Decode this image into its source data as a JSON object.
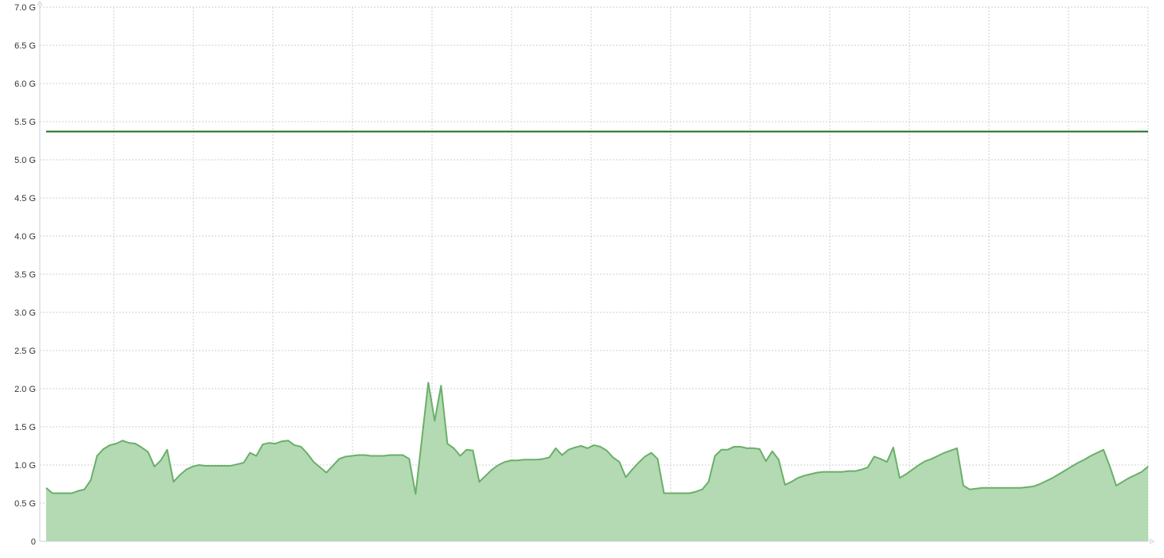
{
  "chart_data": {
    "type": "area",
    "title": "",
    "xlabel": "",
    "ylabel": "",
    "ylim": [
      0,
      7.0
    ],
    "y_ticks": [
      {
        "value": 0,
        "label": "0"
      },
      {
        "value": 0.5,
        "label": "0.5 G"
      },
      {
        "value": 1.0,
        "label": "1.0 G"
      },
      {
        "value": 1.5,
        "label": "1.5 G"
      },
      {
        "value": 2.0,
        "label": "2.0 G"
      },
      {
        "value": 2.5,
        "label": "2.5 G"
      },
      {
        "value": 3.0,
        "label": "3.0 G"
      },
      {
        "value": 3.5,
        "label": "3.5 G"
      },
      {
        "value": 4.0,
        "label": "4.0 G"
      },
      {
        "value": 4.5,
        "label": "4.5 G"
      },
      {
        "value": 5.0,
        "label": "5.0 G"
      },
      {
        "value": 5.5,
        "label": "5.5 G"
      },
      {
        "value": 6.0,
        "label": "6.0 G"
      },
      {
        "value": 6.5,
        "label": "6.5 G"
      },
      {
        "value": 7.0,
        "label": "7.0 G"
      }
    ],
    "x_ticks_count": 14,
    "grid": true,
    "threshold": {
      "value": 5.37,
      "color": "#1f6b1f"
    },
    "series": [
      {
        "fill": "#b3dab3",
        "stroke": "#6aaf6a",
        "values": [
          0.7,
          0.63,
          0.63,
          0.63,
          0.63,
          0.66,
          0.68,
          0.8,
          1.12,
          1.21,
          1.26,
          1.28,
          1.32,
          1.29,
          1.28,
          1.23,
          1.17,
          0.98,
          1.06,
          1.2,
          0.78,
          0.87,
          0.94,
          0.98,
          1.0,
          0.99,
          0.99,
          0.99,
          0.99,
          0.99,
          1.01,
          1.03,
          1.16,
          1.12,
          1.27,
          1.29,
          1.28,
          1.31,
          1.32,
          1.26,
          1.24,
          1.15,
          1.04,
          0.97,
          0.9,
          0.99,
          1.08,
          1.11,
          1.12,
          1.13,
          1.13,
          1.12,
          1.12,
          1.12,
          1.13,
          1.13,
          1.13,
          1.08,
          0.62,
          1.35,
          2.08,
          1.58,
          2.04,
          1.28,
          1.22,
          1.12,
          1.2,
          1.19,
          0.78,
          0.86,
          0.94,
          1.0,
          1.04,
          1.06,
          1.06,
          1.07,
          1.07,
          1.07,
          1.08,
          1.1,
          1.22,
          1.13,
          1.2,
          1.23,
          1.25,
          1.22,
          1.26,
          1.24,
          1.19,
          1.1,
          1.04,
          0.84,
          0.94,
          1.03,
          1.11,
          1.16,
          1.08,
          0.63,
          0.63,
          0.63,
          0.63,
          0.63,
          0.65,
          0.68,
          0.78,
          1.12,
          1.2,
          1.2,
          1.24,
          1.24,
          1.22,
          1.22,
          1.21,
          1.05,
          1.18,
          1.07,
          0.74,
          0.78,
          0.83,
          0.86,
          0.88,
          0.9,
          0.91,
          0.91,
          0.91,
          0.91,
          0.92,
          0.92,
          0.94,
          0.97,
          1.11,
          1.08,
          1.04,
          1.23,
          0.83,
          0.88,
          0.94,
          1.0,
          1.05,
          1.08,
          1.12,
          1.16,
          1.19,
          1.22,
          0.73,
          0.68,
          0.69,
          0.7,
          0.7,
          0.7,
          0.7,
          0.7,
          0.7,
          0.7,
          0.71,
          0.72,
          0.75,
          0.79,
          0.83,
          0.88,
          0.93,
          0.98,
          1.03,
          1.07,
          1.12,
          1.16,
          1.2,
          0.98,
          0.73,
          0.78,
          0.83,
          0.87,
          0.91,
          0.98
        ]
      }
    ]
  }
}
